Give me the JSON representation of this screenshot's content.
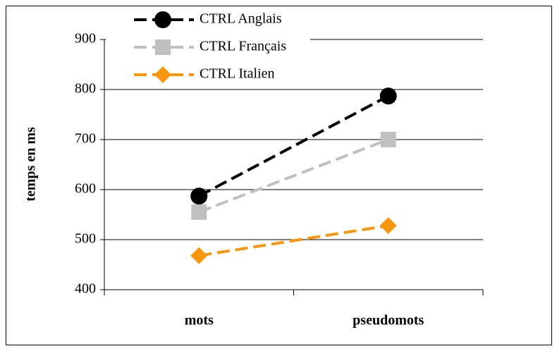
{
  "chart_data": {
    "type": "line",
    "categories": [
      "mots",
      "pseudomots"
    ],
    "series": [
      {
        "name": "CTRL Anglais",
        "color": "#000000",
        "marker": "circle",
        "values": [
          587,
          787
        ]
      },
      {
        "name": "CTRL Français",
        "color": "#c0c0c0",
        "marker": "square",
        "values": [
          555,
          700
        ]
      },
      {
        "name": "CTRL Italien",
        "color": "#f7960f",
        "marker": "diamond",
        "values": [
          468,
          528
        ]
      }
    ],
    "ylabel": "temps en ms",
    "ylim": [
      400,
      900
    ],
    "yticks": [
      400,
      500,
      600,
      700,
      800,
      900
    ],
    "grid": true,
    "legend": "top-left"
  }
}
